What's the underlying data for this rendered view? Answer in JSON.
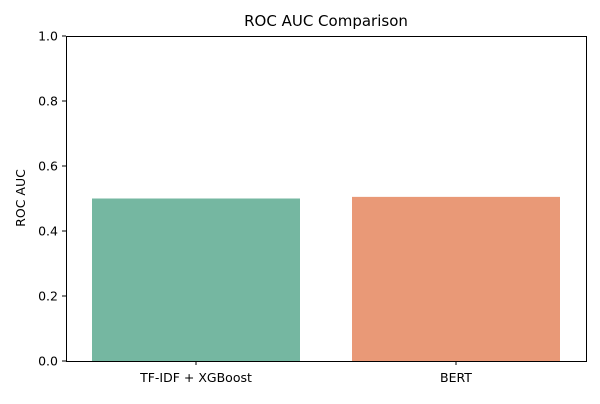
{
  "chart_data": {
    "type": "bar",
    "title": "ROC AUC Comparison",
    "xlabel": "",
    "ylabel": "ROC AUC",
    "categories": [
      "TF-IDF + XGBoost",
      "BERT"
    ],
    "values": [
      0.5,
      0.505
    ],
    "colors": [
      "#75b7a1",
      "#e99977"
    ],
    "ylim": [
      0,
      1.0
    ],
    "yticks": [
      "0.0",
      "0.2",
      "0.4",
      "0.6",
      "0.8",
      "1.0"
    ],
    "grid": false,
    "legend": "none"
  }
}
